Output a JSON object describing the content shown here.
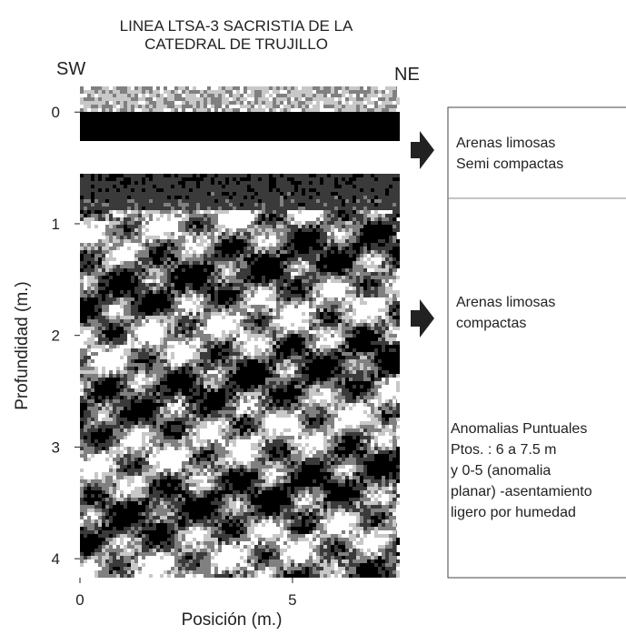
{
  "chart_data": {
    "type": "radargram",
    "title": [
      "LINEA LTSA-3  SACRISTIA DE LA",
      "CATEDRAL DE TRUJILLO"
    ],
    "left_direction": "SW",
    "right_direction": "NE",
    "xlabel": "Posición (m.)",
    "ylabel": "Profundidad (m.)",
    "xlim": [
      0,
      7.46
    ],
    "xticks": [
      0,
      5
    ],
    "ylim": [
      -0.23,
      4.17
    ],
    "yticks": [
      0,
      1,
      2,
      3,
      4
    ],
    "y_inverted": true,
    "annotations": [
      {
        "lines": [
          "Arenas limosas",
          "Semi compactas"
        ]
      },
      {
        "lines": [
          "Arenas limosas",
          "compactas"
        ]
      },
      {
        "lines": [
          "Anomalias Puntuales",
          "Ptos. : 6 a 7.5 m",
          " y  0-5 (anomalia",
          "planar) -asentamiento",
          " ligero por humedad"
        ]
      }
    ]
  }
}
